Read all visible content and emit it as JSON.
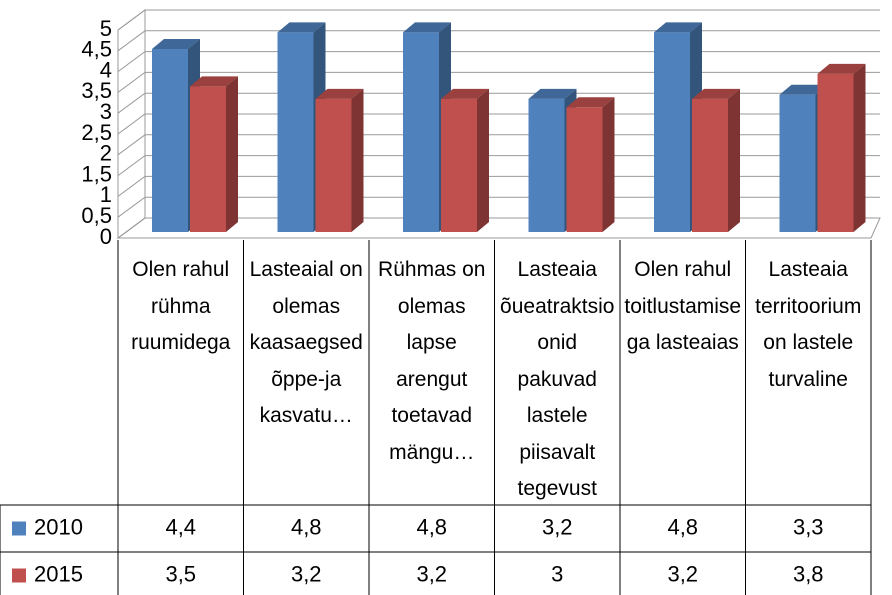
{
  "chart_data": {
    "type": "bar3d",
    "categories": [
      "Olen rahul rühma ruumidega",
      "Lasteaial on olemas kaasaegsed õppe-ja kasvatu…",
      "Rühmas on olemas lapse arengut toetavad mängu…",
      "Lasteaia õueatraktsioonid pakuvad lastele piisavalt tegevust",
      "Olen rahul toitlustamisega lasteaias",
      "Lasteaia territoorium on lastele turvaline"
    ],
    "series": [
      {
        "name": "2010",
        "color": "#4f81bd",
        "values": [
          4.4,
          4.8,
          4.8,
          3.2,
          4.8,
          3.3
        ],
        "value_labels": [
          "4,4",
          "4,8",
          "4,8",
          "3,2",
          "4,8",
          "3,3"
        ]
      },
      {
        "name": "2015",
        "color": "#c0504d",
        "values": [
          3.5,
          3.2,
          3.2,
          3,
          3.2,
          3.8
        ],
        "value_labels": [
          "3,5",
          "3,2",
          "3,2",
          "3",
          "3,2",
          "3,8"
        ]
      }
    ],
    "ylim": [
      0,
      5
    ],
    "yticks": [
      0,
      {
        "value": 0.5,
        "label": "0,5"
      },
      1,
      {
        "value": 1.5,
        "label": "1,5"
      },
      2,
      {
        "value": 2.5,
        "label": "2,5"
      },
      3,
      {
        "value": 3.5,
        "label": "3,5"
      },
      4,
      {
        "value": 4.5,
        "label": "4,5"
      },
      5
    ],
    "grid": true
  }
}
